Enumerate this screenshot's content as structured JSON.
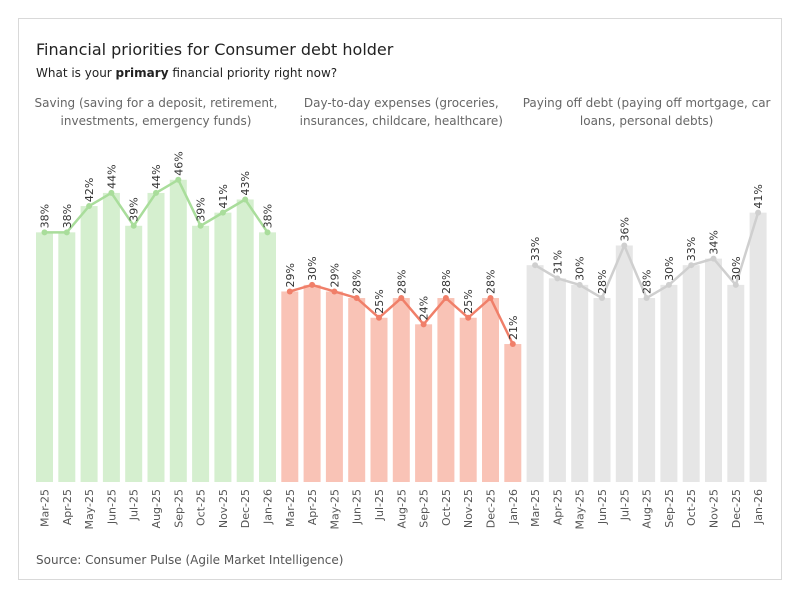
{
  "header": {
    "title": "Financial priorities for Consumer debt holder",
    "subtitle_pre": "What is your ",
    "subtitle_bold": "primary",
    "subtitle_post": " financial priority right now?"
  },
  "source": "Source: Consumer Pulse (Agile Market Intelligence)",
  "colors": {
    "saving_bar": "#d5efcf",
    "saving_line": "#a9dd9b",
    "expenses_bar": "#f9c3b6",
    "expenses_line": "#f07f69",
    "debt_bar": "#e6e6e6",
    "debt_line": "#cfcfcf"
  },
  "chart_data": {
    "type": "bar",
    "categories": [
      "Mar-25",
      "Apr-25",
      "May-25",
      "Jun-25",
      "Jul-25",
      "Aug-25",
      "Sep-25",
      "Oct-25",
      "Nov-25",
      "Dec-25",
      "Jan-26"
    ],
    "ylim": [
      0,
      50
    ],
    "value_suffix": "%",
    "series": [
      {
        "name": "Saving",
        "title_lines": [
          "Saving (saving for a deposit, retirement,",
          "investments, emergency funds)"
        ],
        "values": [
          38,
          38,
          42,
          44,
          39,
          44,
          46,
          39,
          41,
          43,
          38
        ]
      },
      {
        "name": "Day-to-day expenses",
        "title_lines": [
          "Day-to-day expenses (groceries,",
          "insurances, childcare, healthcare)"
        ],
        "values": [
          29,
          30,
          29,
          28,
          25,
          28,
          24,
          28,
          25,
          28,
          21
        ]
      },
      {
        "name": "Paying off debt",
        "title_lines": [
          "Paying off debt (paying off mortgage, car",
          "loans, personal debts)"
        ],
        "values": [
          33,
          31,
          30,
          28,
          36,
          28,
          30,
          33,
          34,
          30,
          41
        ]
      }
    ]
  }
}
